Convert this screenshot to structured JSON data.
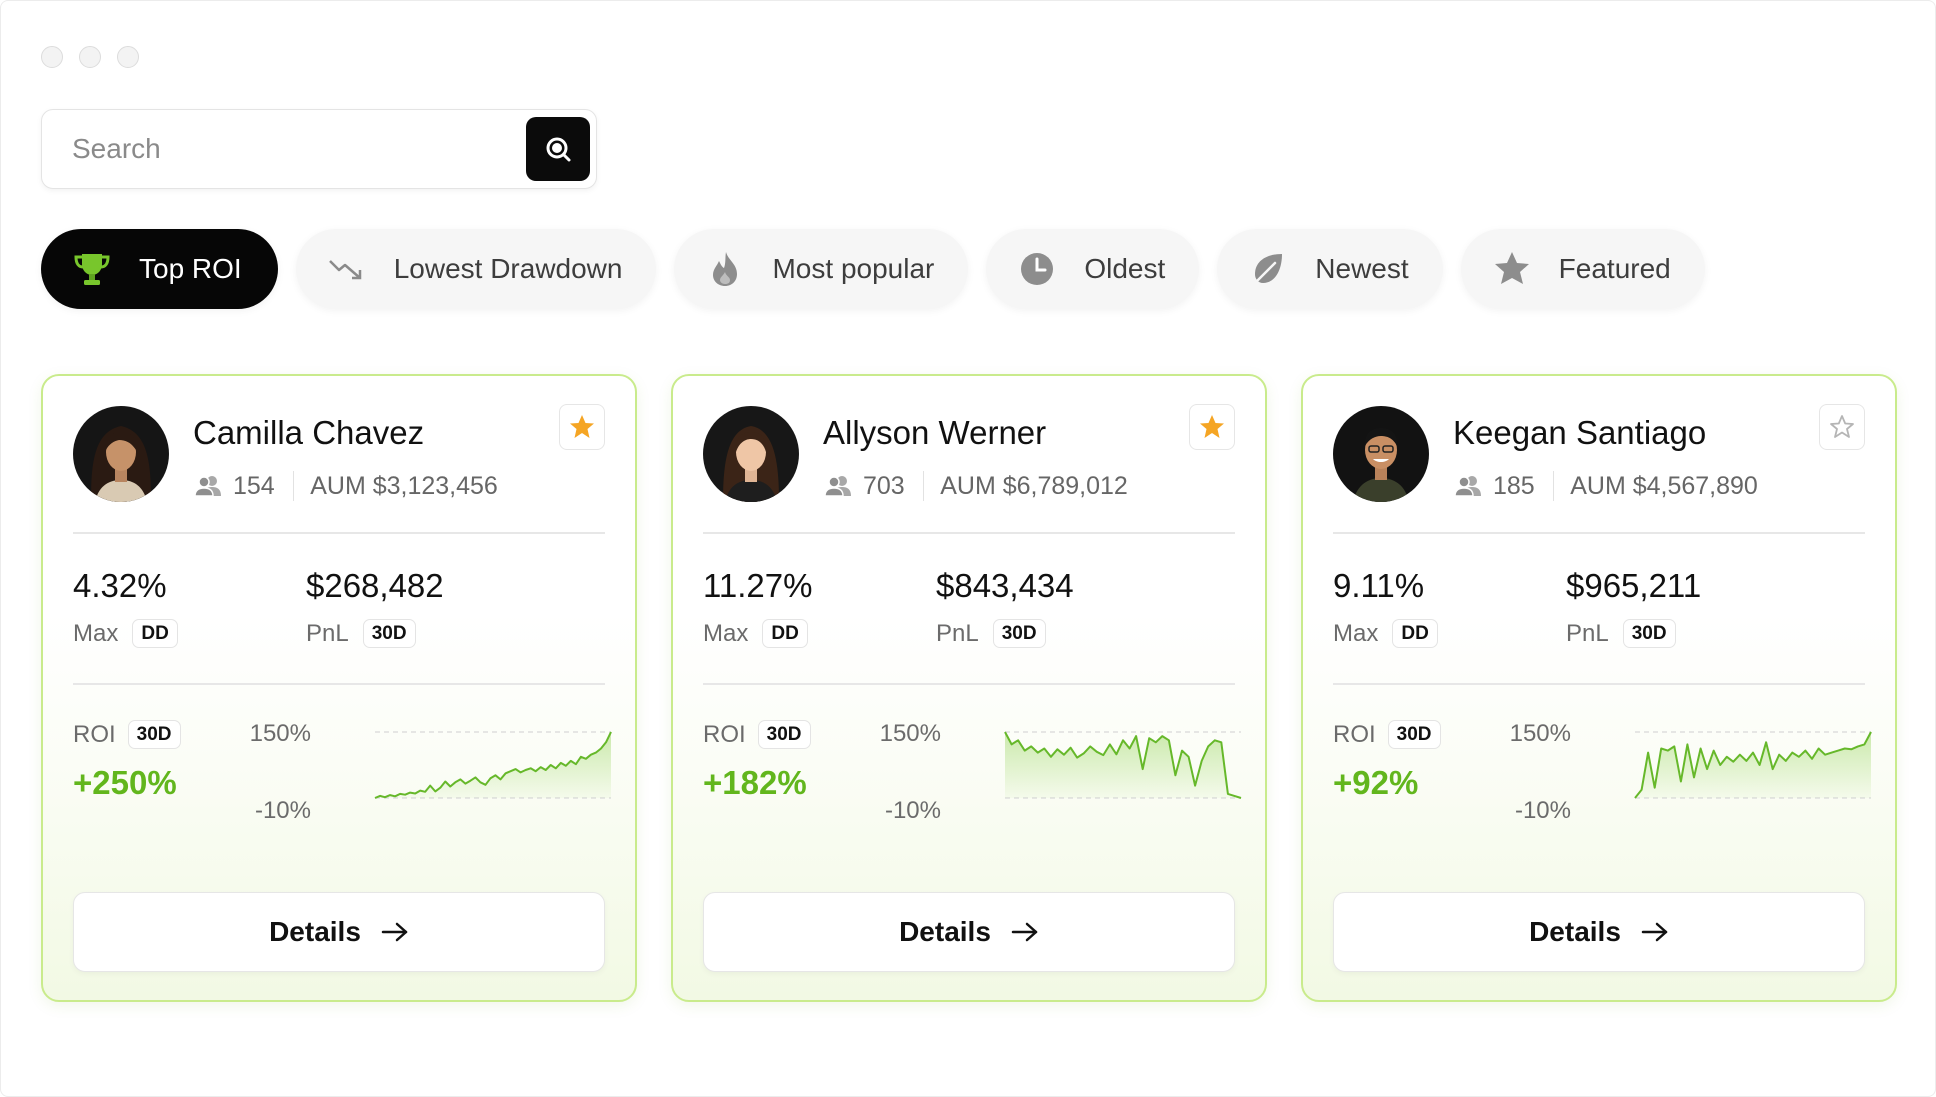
{
  "search": {
    "placeholder": "Search"
  },
  "filters": [
    {
      "label": "Top ROI",
      "icon": "trophy-icon",
      "active": true
    },
    {
      "label": "Lowest Drawdown",
      "icon": "trend-down-icon",
      "active": false
    },
    {
      "label": "Most popular",
      "icon": "flame-icon",
      "active": false
    },
    {
      "label": "Oldest",
      "icon": "clock-icon",
      "active": false
    },
    {
      "label": "Newest",
      "icon": "leaf-icon",
      "active": false
    },
    {
      "label": "Featured",
      "icon": "star-icon",
      "active": false
    }
  ],
  "cards": [
    {
      "name": "Camilla Chavez",
      "followers": "154",
      "aum": "AUM $3,123,456",
      "favorited": true,
      "max_dd": "4.32%",
      "max_label": "Max",
      "max_pill": "DD",
      "pnl": "$268,482",
      "pnl_label": "PnL",
      "pnl_pill": "30D",
      "roi_label": "ROI",
      "roi_pill": "30D",
      "roi": "+250%",
      "axis_top": "150%",
      "axis_bottom": "-10%",
      "details_label": "Details",
      "series": [
        -10,
        -5,
        -8,
        -3,
        -6,
        0,
        -2,
        3,
        1,
        8,
        5,
        20,
        6,
        15,
        30,
        18,
        28,
        35,
        25,
        32,
        40,
        28,
        22,
        38,
        45,
        35,
        50,
        55,
        60,
        52,
        58,
        62,
        55,
        65,
        58,
        70,
        62,
        75,
        68,
        80,
        72,
        90,
        85,
        95,
        100,
        110,
        125,
        150
      ]
    },
    {
      "name": "Allyson Werner",
      "followers": "703",
      "aum": "AUM $6,789,012",
      "favorited": true,
      "max_dd": "11.27%",
      "max_label": "Max",
      "max_pill": "DD",
      "pnl": "$843,434",
      "pnl_label": "PnL",
      "pnl_pill": "30D",
      "roi_label": "ROI",
      "roi_pill": "30D",
      "roi": "+182%",
      "axis_top": "150%",
      "axis_bottom": "-10%",
      "details_label": "Details",
      "series": [
        150,
        120,
        130,
        105,
        115,
        100,
        110,
        90,
        108,
        95,
        112,
        88,
        98,
        115,
        102,
        94,
        120,
        96,
        130,
        110,
        140,
        60,
        135,
        125,
        140,
        130,
        45,
        105,
        90,
        20,
        80,
        115,
        130,
        125,
        0,
        -5,
        -10
      ]
    },
    {
      "name": "Keegan Santiago",
      "followers": "185",
      "aum": "AUM $4,567,890",
      "favorited": false,
      "max_dd": "9.11%",
      "max_label": "Max",
      "max_pill": "DD",
      "pnl": "$965,211",
      "pnl_label": "PnL",
      "pnl_pill": "30D",
      "roi_label": "ROI",
      "roi_pill": "30D",
      "roi": "+92%",
      "axis_top": "150%",
      "axis_bottom": "-10%",
      "details_label": "Details",
      "series": [
        -10,
        10,
        100,
        15,
        110,
        105,
        115,
        30,
        120,
        40,
        110,
        60,
        105,
        70,
        90,
        78,
        95,
        80,
        100,
        70,
        125,
        60,
        95,
        80,
        100,
        90,
        105,
        85,
        110,
        95,
        100,
        105,
        110,
        108,
        115,
        120,
        150
      ]
    }
  ],
  "colors": {
    "accent": "#62b61d",
    "card_border": "#c9eb8c",
    "star": "#f5a524",
    "dark": "#060606"
  }
}
